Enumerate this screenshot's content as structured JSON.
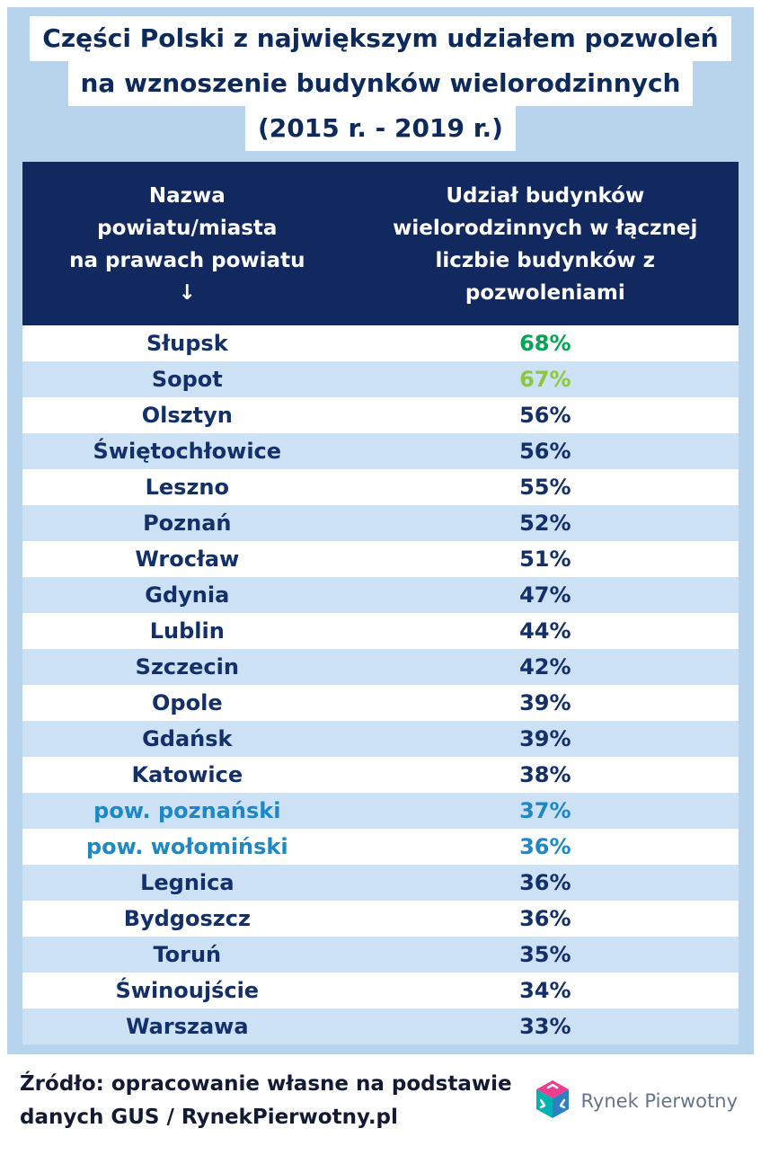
{
  "title": {
    "line1": "Części Polski z największym udziałem pozwoleń",
    "line2": "na wznoszenie budynków wielorodzinnych",
    "line3": "(2015 r. - 2019 r.)"
  },
  "table": {
    "header": {
      "col1": "Nazwa\npowiatu/miasta\nna prawach powiatu\n↓",
      "col2": "Udział budynków\nwielorodzinnych w łącznej\nliczbie budynków z\npozwoleniami"
    },
    "rows": [
      {
        "name": "Słupsk",
        "value": "68%",
        "value_color": "#00a651"
      },
      {
        "name": "Sopot",
        "value": "67%",
        "value_color": "#8dc63f"
      },
      {
        "name": "Olsztyn",
        "value": "56%"
      },
      {
        "name": "Świętochłowice",
        "value": "56%"
      },
      {
        "name": "Leszno",
        "value": "55%"
      },
      {
        "name": "Poznań",
        "value": "52%"
      },
      {
        "name": "Wrocław",
        "value": "51%"
      },
      {
        "name": "Gdynia",
        "value": "47%"
      },
      {
        "name": "Lublin",
        "value": "44%"
      },
      {
        "name": "Szczecin",
        "value": "42%"
      },
      {
        "name": "Opole",
        "value": "39%"
      },
      {
        "name": "Gdańsk",
        "value": "39%"
      },
      {
        "name": "Katowice",
        "value": "38%"
      },
      {
        "name": "pow. poznański",
        "value": "37%",
        "name_color": "#1e88c7",
        "value_color": "#1e88c7"
      },
      {
        "name": "pow. wołomiński",
        "value": "36%",
        "name_color": "#1e88c7",
        "value_color": "#1e88c7"
      },
      {
        "name": "Legnica",
        "value": "36%"
      },
      {
        "name": "Bydgoszcz",
        "value": "36%"
      },
      {
        "name": "Toruń",
        "value": "35%"
      },
      {
        "name": "Świnoujście",
        "value": "34%"
      },
      {
        "name": "Warszawa",
        "value": "33%"
      }
    ]
  },
  "footer": {
    "source": "Źródło: opracowanie własne na podstawie\ndanych GUS / RynekPierwotny.pl",
    "logo_text": "Rynek Pierwotny"
  },
  "colors": {
    "page_bg": "#b7d4ec",
    "header_bg": "#12295f",
    "row_alt_bg": "#cde1f4",
    "text_navy": "#13306b",
    "green": "#00a651",
    "light_green": "#8dc63f",
    "blue": "#1e88c7"
  },
  "chart_data": {
    "type": "table",
    "title": "Części Polski z największym udziałem pozwoleń na wznoszenie budynków wielorodzinnych (2015 r. - 2019 r.)",
    "columns": [
      "Nazwa powiatu/miasta na prawach powiatu",
      "Udział budynków wielorodzinnych w łącznej liczbie budynków z pozwoleniami"
    ],
    "categories": [
      "Słupsk",
      "Sopot",
      "Olsztyn",
      "Świętochłowice",
      "Leszno",
      "Poznań",
      "Wrocław",
      "Gdynia",
      "Lublin",
      "Szczecin",
      "Opole",
      "Gdańsk",
      "Katowice",
      "pow. poznański",
      "pow. wołomiński",
      "Legnica",
      "Bydgoszcz",
      "Toruń",
      "Świnoujście",
      "Warszawa"
    ],
    "values": [
      68,
      67,
      56,
      56,
      55,
      52,
      51,
      47,
      44,
      42,
      39,
      39,
      38,
      37,
      36,
      36,
      36,
      35,
      34,
      33
    ],
    "unit": "%"
  }
}
